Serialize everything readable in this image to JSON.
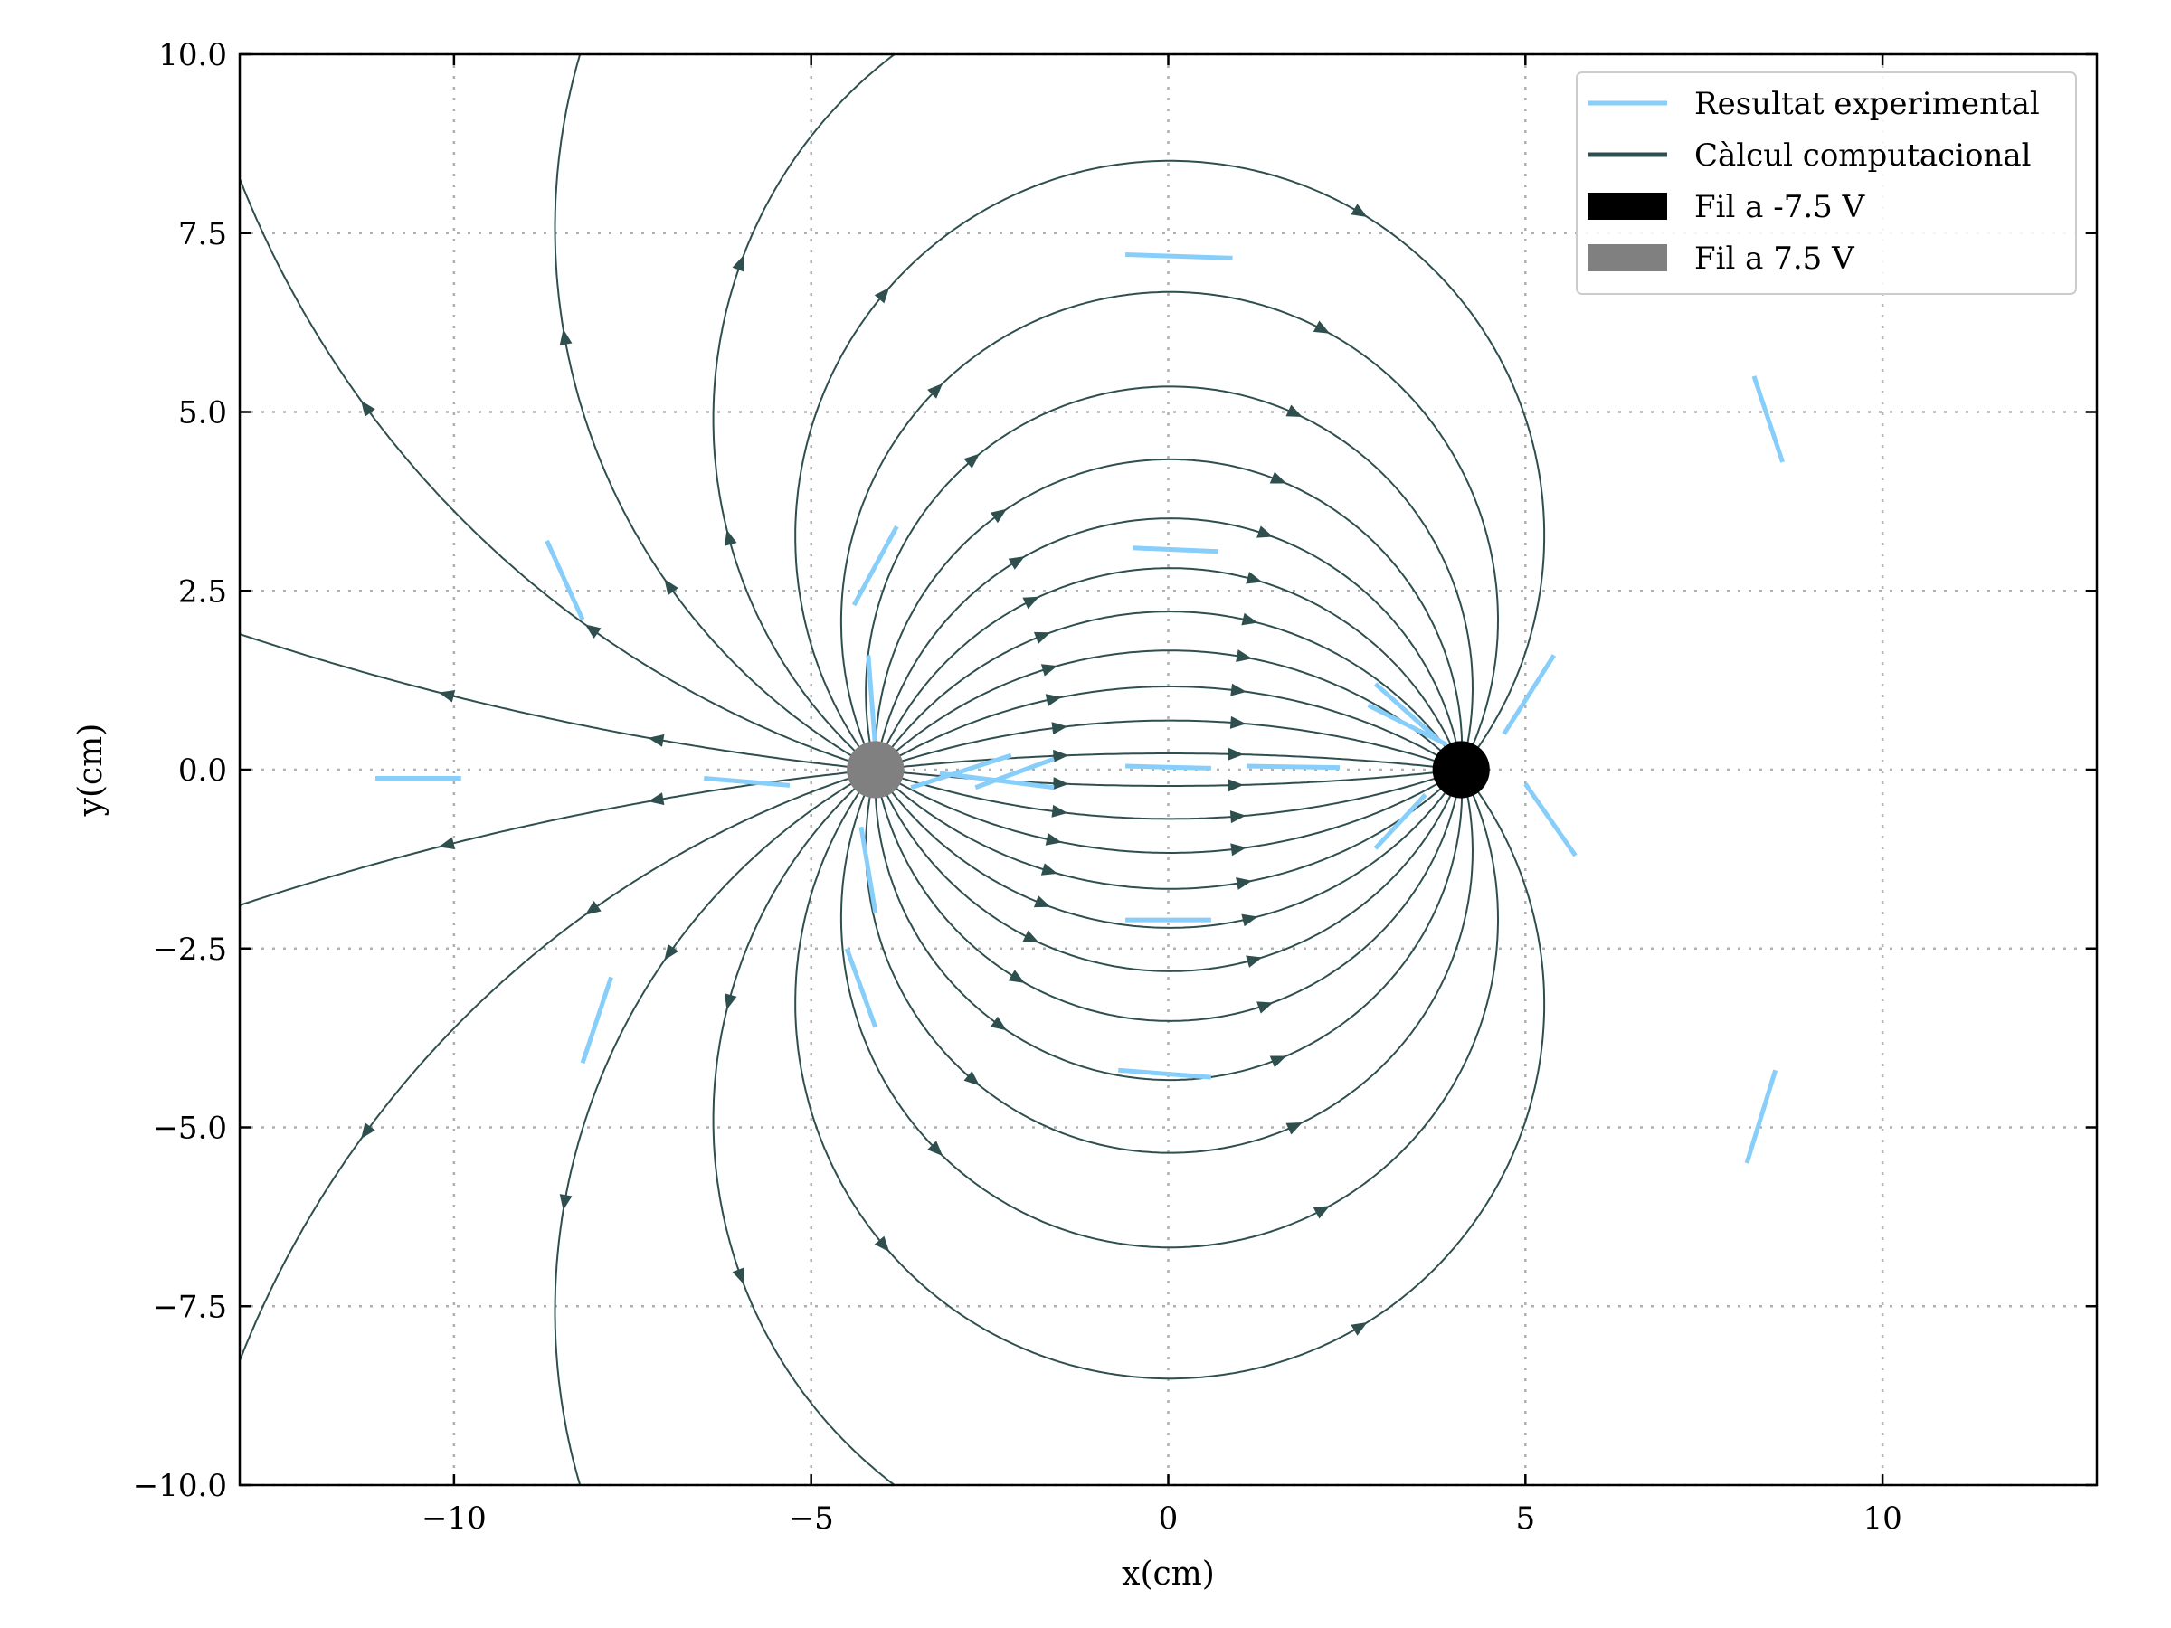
{
  "chart_data": {
    "type": "scatter",
    "title": "",
    "xlabel": "x(cm)",
    "ylabel": "y(cm)",
    "xlim": [
      -13,
      13
    ],
    "ylim": [
      -10,
      10
    ],
    "xticks": [
      -10,
      -5,
      0,
      5,
      10
    ],
    "xtick_labels": [
      "−10",
      "−5",
      "0",
      "5",
      "10"
    ],
    "yticks": [
      -10,
      -7.5,
      -5,
      -2.5,
      0,
      2.5,
      5,
      7.5,
      10
    ],
    "ytick_labels": [
      "−10.0",
      "−7.5",
      "−5.0",
      "−2.5",
      "0.0",
      "2.5",
      "5.0",
      "7.5",
      "10.0"
    ],
    "grid": true,
    "legend_position": "top-right",
    "colors": {
      "experimental": "#87cefa",
      "computational": "#2f4f4f",
      "negative_wire": "#000000",
      "positive_wire": "#808080"
    },
    "legend": [
      {
        "label": "Resultat experimental",
        "kind": "line",
        "color": "#87cefa"
      },
      {
        "label": "Càlcul computacional",
        "kind": "line",
        "color": "#2f4f4f"
      },
      {
        "label": "Fil a -7.5 V",
        "kind": "patch",
        "color": "#000000"
      },
      {
        "label": "Fil a 7.5 V",
        "kind": "patch",
        "color": "#808080"
      }
    ],
    "wires": [
      {
        "name": "Fil a -7.5 V",
        "x": 4.1,
        "y": 0.0,
        "radius": 0.4,
        "charge": -1,
        "color": "#000000"
      },
      {
        "name": "Fil a 7.5 V",
        "x": -4.1,
        "y": 0.0,
        "radius": 0.4,
        "charge": 1,
        "color": "#808080"
      }
    ],
    "experimental_segments": [
      [
        [
          -11.1,
          -0.12
        ],
        [
          -9.9,
          -0.12
        ]
      ],
      [
        [
          -6.5,
          -0.12
        ],
        [
          -5.3,
          -0.22
        ]
      ],
      [
        [
          -8.7,
          3.2
        ],
        [
          -8.2,
          2.1
        ]
      ],
      [
        [
          -4.4,
          2.3
        ],
        [
          -3.8,
          3.4
        ]
      ],
      [
        [
          -4.2,
          1.6
        ],
        [
          -4.1,
          0.3
        ]
      ],
      [
        [
          -4.3,
          -0.8
        ],
        [
          -4.1,
          -2.0
        ]
      ],
      [
        [
          -4.5,
          -2.5
        ],
        [
          -4.1,
          -3.6
        ]
      ],
      [
        [
          -8.2,
          -4.1
        ],
        [
          -7.8,
          -2.9
        ]
      ],
      [
        [
          -3.6,
          -0.25
        ],
        [
          -2.2,
          0.2
        ]
      ],
      [
        [
          -3.2,
          -0.05
        ],
        [
          -1.6,
          -0.25
        ]
      ],
      [
        [
          -2.7,
          -0.25
        ],
        [
          -1.6,
          0.15
        ]
      ],
      [
        [
          -0.6,
          7.2
        ],
        [
          0.9,
          7.15
        ]
      ],
      [
        [
          -0.5,
          3.1
        ],
        [
          0.7,
          3.05
        ]
      ],
      [
        [
          -0.6,
          0.05
        ],
        [
          0.6,
          0.02
        ]
      ],
      [
        [
          1.1,
          0.05
        ],
        [
          2.4,
          0.03
        ]
      ],
      [
        [
          -0.6,
          -2.1
        ],
        [
          0.6,
          -2.1
        ]
      ],
      [
        [
          -0.7,
          -4.2
        ],
        [
          0.6,
          -4.3
        ]
      ],
      [
        [
          2.9,
          1.2
        ],
        [
          3.8,
          0.4
        ]
      ],
      [
        [
          2.8,
          0.9
        ],
        [
          3.9,
          0.35
        ]
      ],
      [
        [
          2.9,
          -1.1
        ],
        [
          3.6,
          -0.35
        ]
      ],
      [
        [
          4.7,
          0.5
        ],
        [
          5.4,
          1.6
        ]
      ],
      [
        [
          5.0,
          -0.2
        ],
        [
          5.7,
          -1.2
        ]
      ],
      [
        [
          8.2,
          5.5
        ],
        [
          8.6,
          4.3
        ]
      ],
      [
        [
          8.1,
          -5.5
        ],
        [
          8.5,
          -4.2
        ]
      ]
    ]
  }
}
